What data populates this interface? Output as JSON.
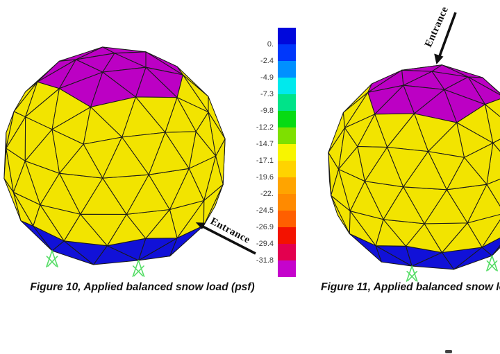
{
  "figure": {
    "left": {
      "caption": "Figure 10, Applied balanced snow load (psf)",
      "entrance_label": "Entrance"
    },
    "right": {
      "caption": "Figure 11, Applied balanced snow lo",
      "entrance_label": "Entrance"
    }
  },
  "colorbar": {
    "unit": "psf",
    "tick_labels": [
      "0.",
      "-2.4",
      "-4.9",
      "-7.3",
      "-9.8",
      "-12.2",
      "-14.7",
      "-17.1",
      "-19.6",
      "-22.",
      "-24.5",
      "-26.9",
      "-29.4",
      "-31.8"
    ],
    "segment_colors": [
      "#0008DC",
      "#0037FB",
      "#0090FF",
      "#00E9ED",
      "#00E389",
      "#07DB13",
      "#7EE000",
      "#F8F500",
      "#FFD300",
      "#FFA400",
      "#FF8A00",
      "#FF5F00",
      "#F31200",
      "#E3004F",
      "#C503CC"
    ]
  },
  "dome_style": {
    "face_color": "#F2E400",
    "cap_color": "#BC00C4",
    "band_color": "#1111D8",
    "edge_color": "#1a1a1a",
    "support_color": "#55DD66",
    "arrow_color": "#101010"
  },
  "chart_data": {
    "type": "heatmap",
    "title": "Applied balanced snow load (psf)",
    "legend": {
      "position": "center",
      "tick_values": [
        0,
        -2.4,
        -4.9,
        -7.3,
        -9.8,
        -12.2,
        -14.7,
        -17.1,
        -19.6,
        -22,
        -24.5,
        -26.9,
        -29.4,
        -31.8
      ],
      "orientation": "vertical-discrete",
      "segments": 15
    },
    "notes": "Two 3D geodesic dome finite-element meshes; top cap faces at magenta (≈ -31.8 psf), main shell faces yellow (≈ -15 psf), base ring faces blue (≈ 0 psf); pin supports shown in green at base nodes; entrance direction annotated with arrows."
  }
}
